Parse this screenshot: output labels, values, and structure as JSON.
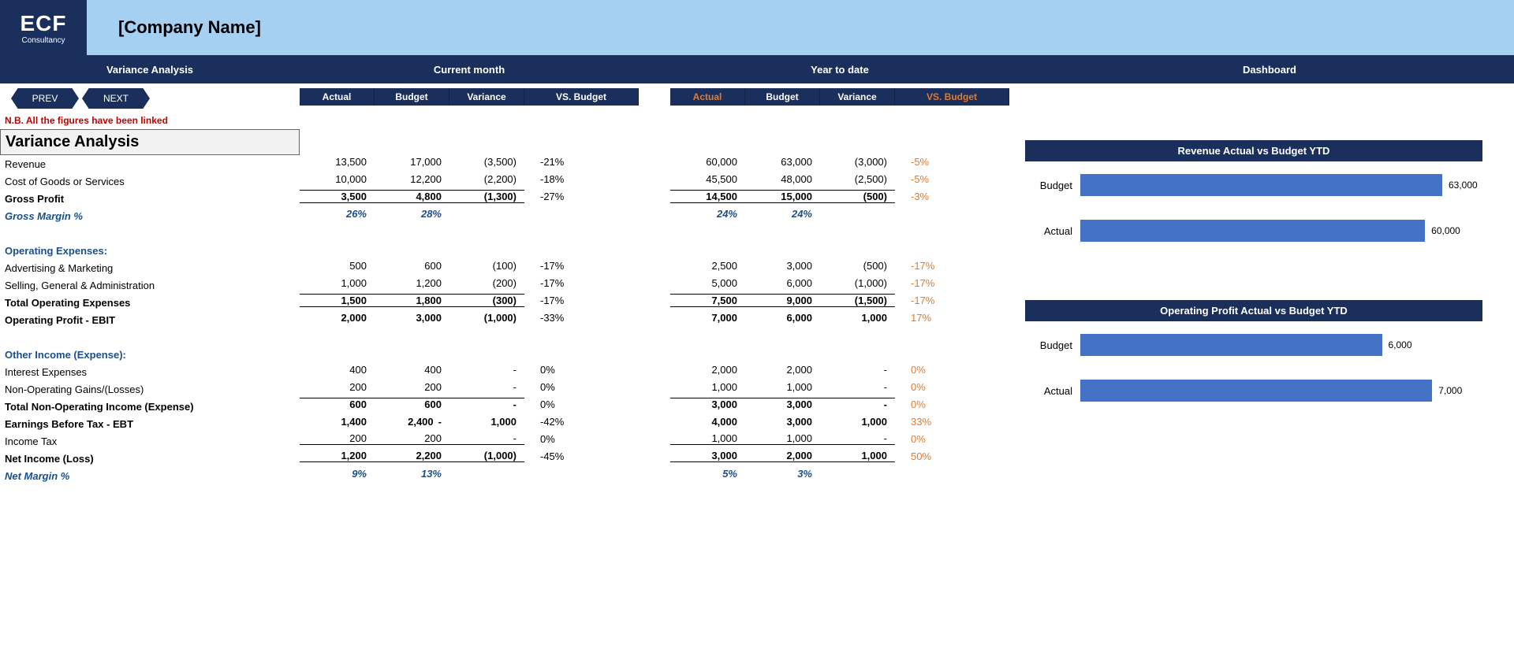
{
  "logo": {
    "main": "ECF",
    "sub": "Consultancy"
  },
  "company_name": "[Company Name]",
  "section_headers": {
    "left": "Variance Analysis",
    "cm": "Current month",
    "ytd": "Year to date",
    "dash": "Dashboard"
  },
  "nav": {
    "prev": "PREV",
    "next": "NEXT"
  },
  "note": "N.B. All the figures have been linked",
  "col_headers": {
    "actual": "Actual",
    "budget": "Budget",
    "variance": "Variance",
    "vs": "VS. Budget"
  },
  "section_title": "Variance Analysis",
  "colors": {
    "banner_bg": "#a6d0f2",
    "dark_blue": "#1a2f5c",
    "bar_fill": "#4472c4",
    "orange": "#e07a2e",
    "note_red": "#c00000",
    "blue_text": "#1a4e8e"
  },
  "rows": [
    {
      "label": "Revenue",
      "cm": {
        "a": "13,500",
        "b": "17,000",
        "v": "(3,500)",
        "p": "-21%"
      },
      "ytd": {
        "a": "60,000",
        "b": "63,000",
        "v": "(3,000)",
        "p": "-5%",
        "pc": "orange"
      }
    },
    {
      "label": "Cost of Goods or Services",
      "cm": {
        "a": "10,000",
        "b": "12,200",
        "v": "(2,200)",
        "p": "-18%"
      },
      "ytd": {
        "a": "45,500",
        "b": "48,000",
        "v": "(2,500)",
        "p": "-5%",
        "pc": "orange"
      }
    },
    {
      "label": "Gross Profit",
      "bold": true,
      "topline": true,
      "botline": true,
      "cm": {
        "a": "3,500",
        "b": "4,800",
        "v": "(1,300)",
        "p": "-27%"
      },
      "ytd": {
        "a": "14,500",
        "b": "15,000",
        "v": "(500)",
        "p": "-3%",
        "pc": "orange"
      }
    },
    {
      "label": "Gross Margin %",
      "italic": true,
      "cm": {
        "a": "26%",
        "b": "28%",
        "blueit": true
      },
      "ytd": {
        "a": "24%",
        "b": "24%",
        "blueit": true
      }
    },
    {
      "spacer": true
    },
    {
      "label": "Operating Expenses:",
      "blue": true
    },
    {
      "label": "Advertising & Marketing",
      "cm": {
        "a": "500",
        "b": "600",
        "v": "(100)",
        "p": "-17%"
      },
      "ytd": {
        "a": "2,500",
        "b": "3,000",
        "v": "(500)",
        "p": "-17%",
        "pc": "orange"
      }
    },
    {
      "label": "Selling, General & Administration",
      "cm": {
        "a": "1,000",
        "b": "1,200",
        "v": "(200)",
        "p": "-17%"
      },
      "ytd": {
        "a": "5,000",
        "b": "6,000",
        "v": "(1,000)",
        "p": "-17%",
        "pc": "orange"
      }
    },
    {
      "label": "Total Operating Expenses",
      "bold": true,
      "topline": true,
      "botline": true,
      "cm": {
        "a": "1,500",
        "b": "1,800",
        "v": "(300)",
        "p": "-17%"
      },
      "ytd": {
        "a": "7,500",
        "b": "9,000",
        "v": "(1,500)",
        "p": "-17%",
        "pc": "orange"
      }
    },
    {
      "label": "Operating Profit - EBIT",
      "bold": true,
      "cm": {
        "a": "2,000",
        "b": "3,000",
        "v": "(1,000)",
        "p": "-33%"
      },
      "ytd": {
        "a": "7,000",
        "b": "6,000",
        "v": "1,000",
        "p": "17%",
        "pc": "orange"
      }
    },
    {
      "spacer": true
    },
    {
      "label": "Other Income (Expense):",
      "blue": true
    },
    {
      "label": "Interest Expenses",
      "cm": {
        "a": "400",
        "b": "400",
        "v": "-",
        "p": "0%"
      },
      "ytd": {
        "a": "2,000",
        "b": "2,000",
        "v": "-",
        "p": "0%",
        "pc": "orange"
      }
    },
    {
      "label": "Non-Operating Gains/(Losses)",
      "cm": {
        "a": "200",
        "b": "200",
        "v": "-",
        "p": "0%"
      },
      "ytd": {
        "a": "1,000",
        "b": "1,000",
        "v": "-",
        "p": "0%",
        "pc": "orange"
      }
    },
    {
      "label": "Total Non-Operating Income (Expense)",
      "bold": true,
      "topline": true,
      "cm": {
        "a": "600",
        "b": "600",
        "v": "-",
        "p": "0%"
      },
      "ytd": {
        "a": "3,000",
        "b": "3,000",
        "v": "-",
        "p": "0%",
        "pc": "orange"
      }
    },
    {
      "label": "Earnings Before Tax - EBT",
      "bold": true,
      "cm": {
        "a": "1,400",
        "b": "2,400",
        "mid": "-",
        "v": "1,000",
        "p": "-42%"
      },
      "ytd": {
        "a": "4,000",
        "b": "3,000",
        "v": "1,000",
        "p": "33%",
        "pc": "orange"
      }
    },
    {
      "label": "Income Tax",
      "botline": true,
      "cm": {
        "a": "200",
        "b": "200",
        "v": "-",
        "p": "0%"
      },
      "ytd": {
        "a": "1,000",
        "b": "1,000",
        "v": "-",
        "p": "0%",
        "pc": "orange"
      }
    },
    {
      "label": "Net Income (Loss)",
      "bold": true,
      "botline": true,
      "cm": {
        "a": "1,200",
        "b": "2,200",
        "v": "(1,000)",
        "p": "-45%"
      },
      "ytd": {
        "a": "3,000",
        "b": "2,000",
        "v": "1,000",
        "p": "50%",
        "pc": "orange"
      }
    },
    {
      "label": "Net Margin %",
      "italic": true,
      "cm": {
        "a": "9%",
        "b": "13%",
        "blueit": true
      },
      "ytd": {
        "a": "5%",
        "b": "3%",
        "blueit": true
      }
    }
  ],
  "charts": [
    {
      "title": "Revenue Actual vs Budget YTD",
      "max": 70000,
      "bars": [
        {
          "label": "Budget",
          "value": 63000,
          "disp": "63,000"
        },
        {
          "label": "Actual",
          "value": 60000,
          "disp": "60,000"
        }
      ]
    },
    {
      "title": "Operating Profit Actual vs Budget YTD",
      "max": 8000,
      "bars": [
        {
          "label": "Budget",
          "value": 6000,
          "disp": "6,000"
        },
        {
          "label": "Actual",
          "value": 7000,
          "disp": "7,000"
        }
      ]
    }
  ]
}
